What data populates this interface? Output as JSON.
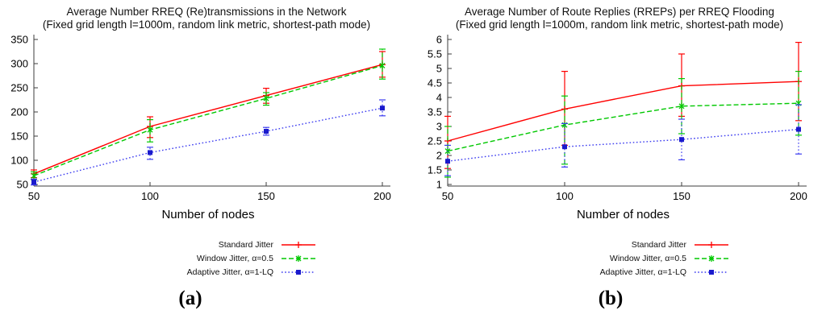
{
  "panels": [
    {
      "caption": "(a)"
    },
    {
      "caption": "(b)"
    }
  ],
  "legend": {
    "position": "below-chart-right-aligned",
    "entries": [
      {
        "label": "Standard Jitter",
        "color": "#ff0000",
        "marker_color": "#ff0000",
        "line": "solid",
        "marker": "plus"
      },
      {
        "label": "Window Jitter, α=0.5",
        "color": "#00c800",
        "marker_color": "#00c800",
        "line": "dashed",
        "marker": "asterisk"
      },
      {
        "label": "Adaptive Jitter, α=1-LQ",
        "color": "#3b3bf0",
        "marker_color": "#1a1acc",
        "line": "dotted",
        "marker": "square"
      }
    ]
  },
  "chart_data": [
    {
      "type": "line",
      "title": "Average Number RREQ (Re)transmissions in the Network",
      "subtitle": "(Fixed grid length l=1000m, random link metric, shortest-path mode)",
      "xlabel": "Number of nodes",
      "x": [
        50,
        100,
        150,
        200
      ],
      "xticks": [
        50,
        100,
        150,
        200
      ],
      "xlim": [
        50,
        200
      ],
      "ylim": [
        50,
        350
      ],
      "yticks": [
        50,
        100,
        150,
        200,
        250,
        300,
        350
      ],
      "grid": false,
      "error_bars": true,
      "legend_position": "below",
      "series": [
        {
          "name": "Standard Jitter",
          "color": "#ff0000",
          "marker_color": "#ff0000",
          "line": "solid",
          "marker": "plus",
          "values": [
            72,
            170,
            234,
            298
          ],
          "err_lo": [
            64,
            147,
            218,
            272
          ],
          "err_hi": [
            80,
            190,
            249,
            325
          ]
        },
        {
          "name": "Window Jitter, α=0.5",
          "color": "#00c800",
          "marker_color": "#00c800",
          "line": "dashed",
          "marker": "asterisk",
          "values": [
            68,
            163,
            228,
            296
          ],
          "err_lo": [
            60,
            138,
            214,
            268
          ],
          "err_hi": [
            76,
            184,
            240,
            330
          ]
        },
        {
          "name": "Adaptive Jitter, α=1-LQ",
          "color": "#3b3bf0",
          "marker_color": "#1a1acc",
          "line": "dotted",
          "marker": "square",
          "values": [
            55,
            116,
            160,
            208
          ],
          "err_lo": [
            49,
            102,
            152,
            192
          ],
          "err_hi": [
            61,
            127,
            168,
            225
          ]
        }
      ]
    },
    {
      "type": "line",
      "title": "Average Number of Route Replies (RREPs) per RREQ Flooding",
      "subtitle": "(Fixed grid length l=1000m, random link metric, shortest-path mode)",
      "xlabel": "Number of nodes",
      "x": [
        50,
        100,
        150,
        200
      ],
      "xticks": [
        50,
        100,
        150,
        200
      ],
      "xlim": [
        50,
        200
      ],
      "ylim": [
        1,
        6
      ],
      "yticks": [
        1,
        1.5,
        2,
        2.5,
        3,
        3.5,
        4,
        4.5,
        5,
        5.5,
        6
      ],
      "grid": false,
      "error_bars": true,
      "legend_position": "below",
      "series": [
        {
          "name": "Standard Jitter",
          "color": "#ff0000",
          "marker_color": "#ff0000",
          "line": "solid",
          "marker": "plus",
          "values": [
            2.5,
            3.6,
            4.4,
            4.55
          ],
          "err_lo": [
            1.55,
            2.35,
            3.35,
            3.2
          ],
          "err_hi": [
            3.35,
            4.9,
            5.5,
            5.9
          ]
        },
        {
          "name": "Window Jitter, α=0.5",
          "color": "#00c800",
          "marker_color": "#00c800",
          "line": "dashed",
          "marker": "asterisk",
          "values": [
            2.15,
            3.05,
            3.7,
            3.8
          ],
          "err_lo": [
            1.25,
            1.7,
            2.75,
            2.7
          ],
          "err_hi": [
            3.0,
            4.05,
            4.65,
            4.9
          ]
        },
        {
          "name": "Adaptive Jitter, α=1-LQ",
          "color": "#3b3bf0",
          "marker_color": "#1a1acc",
          "line": "dotted",
          "marker": "square",
          "values": [
            1.8,
            2.3,
            2.55,
            2.9
          ],
          "err_lo": [
            1.3,
            1.6,
            1.85,
            2.05
          ],
          "err_hi": [
            2.35,
            3.1,
            3.25,
            3.75
          ]
        }
      ]
    }
  ]
}
